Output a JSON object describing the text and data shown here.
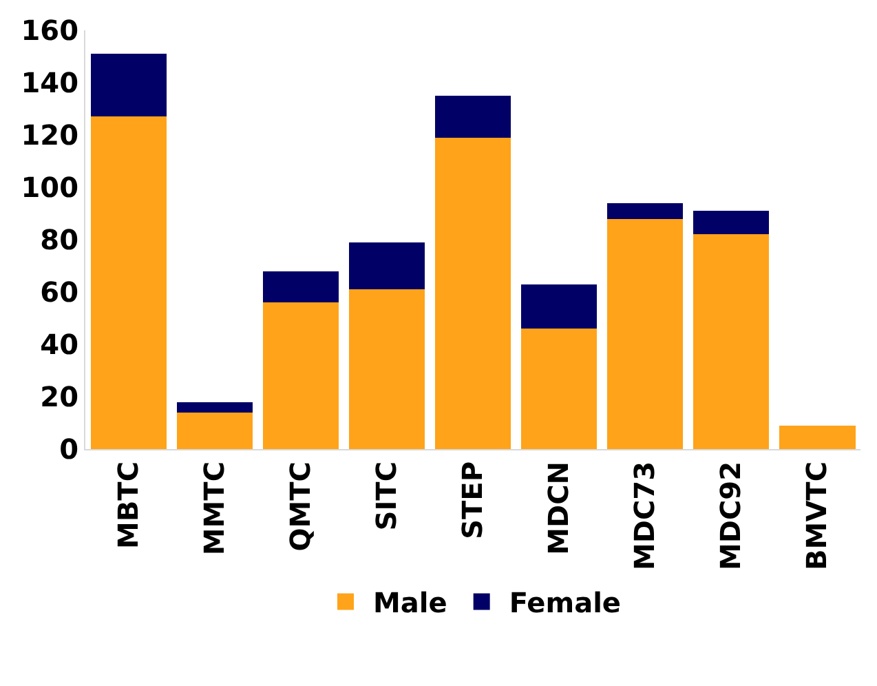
{
  "chart_data": {
    "type": "bar",
    "stacked": true,
    "categories": [
      "MBTC",
      "MMTC",
      "QMTC",
      "SITC",
      "STEP",
      "MDCN",
      "MDC73",
      "MDC92",
      "BMVTC"
    ],
    "series": [
      {
        "name": "Male",
        "color": "#ffa31a",
        "values": [
          127,
          14,
          56,
          61,
          119,
          46,
          88,
          82,
          9
        ]
      },
      {
        "name": "Female",
        "color": "#000066",
        "values": [
          24,
          4,
          12,
          18,
          16,
          17,
          6,
          9,
          0
        ]
      }
    ],
    "ylim": [
      0,
      160
    ],
    "yticks": [
      0,
      20,
      40,
      60,
      80,
      100,
      120,
      140,
      160
    ],
    "grid": false,
    "legend": "bottom"
  }
}
